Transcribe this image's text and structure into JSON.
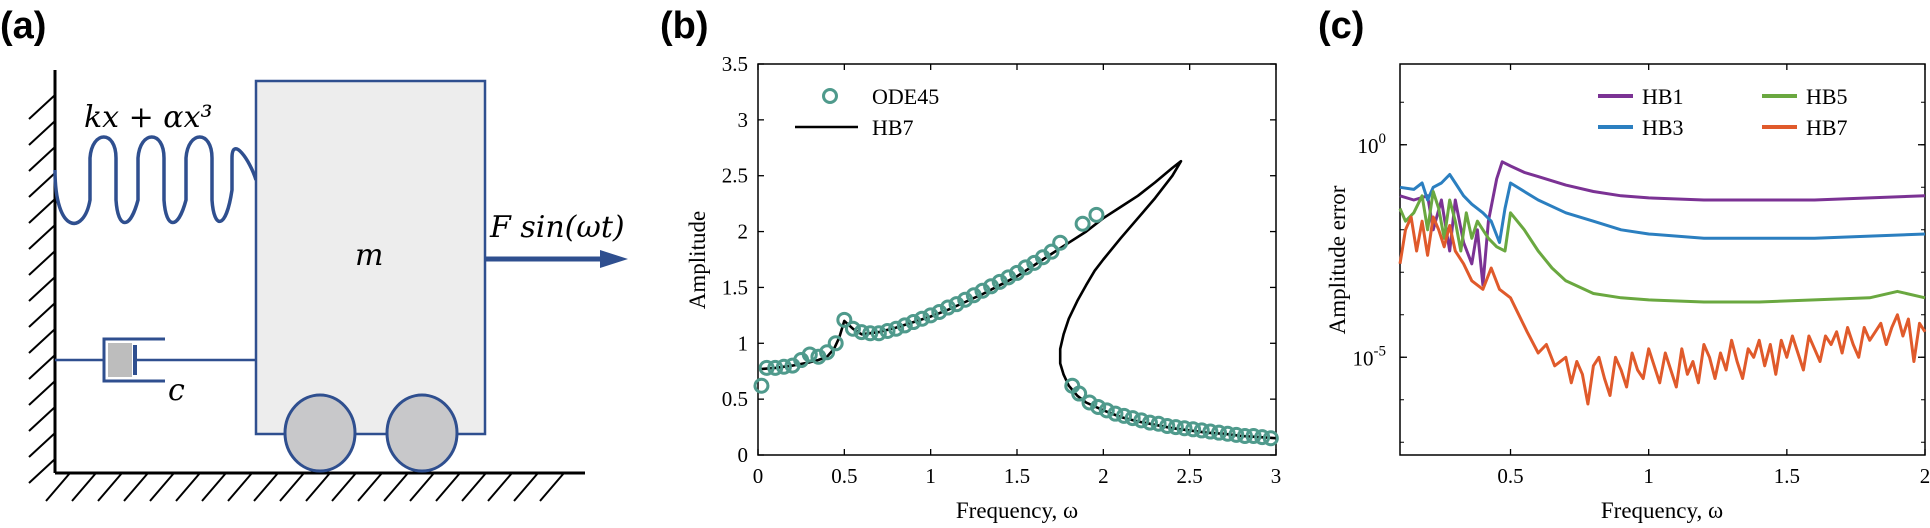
{
  "panels": {
    "a": {
      "label": "(a)",
      "spring_label": "kx + αx³",
      "mass_label": "m",
      "force_label": "F sin(ωt)",
      "damper_label": "c",
      "colors": {
        "line": "#2f4f8f",
        "mass_fill": "#ededed",
        "wheel_fill": "#c8c8ca"
      }
    },
    "b": {
      "label": "(b)"
    },
    "c": {
      "label": "(c)"
    }
  },
  "chart_data": [
    {
      "id": "b",
      "type": "line",
      "title": "",
      "xlabel": "Frequency, ω",
      "ylabel": "Amplitude",
      "xlim": [
        0,
        3
      ],
      "ylim": [
        0,
        3.5
      ],
      "xticks": [
        "0",
        "0.5",
        "1",
        "1.5",
        "2",
        "2.5",
        "3"
      ],
      "xtick_values": [
        0,
        0.5,
        1,
        1.5,
        2,
        2.5,
        3
      ],
      "yticks": [
        "0",
        "0.5",
        "1",
        "1.5",
        "2",
        "2.5",
        "3",
        "3.5"
      ],
      "ytick_values": [
        0,
        0.5,
        1,
        1.5,
        2,
        2.5,
        3,
        3.5
      ],
      "legend": {
        "position": "top-left",
        "entries": [
          "ODE45",
          "HB7"
        ]
      },
      "series": [
        {
          "name": "HB7",
          "kind": "line",
          "color": "#000000",
          "x": [
            0.02,
            0.1,
            0.2,
            0.3,
            0.35,
            0.4,
            0.44,
            0.47,
            0.5,
            0.55,
            0.6,
            0.7,
            0.8,
            0.9,
            1.0,
            1.1,
            1.2,
            1.3,
            1.4,
            1.5,
            1.6,
            1.7,
            1.8,
            1.9,
            2.0,
            2.1,
            2.2,
            2.3,
            2.4,
            2.45,
            2.4,
            2.3,
            2.2,
            2.1,
            2.0,
            1.95,
            1.9,
            1.85,
            1.8,
            1.77,
            1.75,
            1.75,
            1.77,
            1.8,
            1.85,
            1.9,
            2.0,
            2.1,
            2.2,
            2.3,
            2.4,
            2.5,
            2.6,
            2.7,
            2.8,
            2.9,
            3.0
          ],
          "y": [
            0.77,
            0.78,
            0.8,
            0.83,
            0.85,
            0.88,
            0.95,
            1.05,
            1.2,
            1.13,
            1.08,
            1.1,
            1.14,
            1.19,
            1.24,
            1.3,
            1.37,
            1.44,
            1.52,
            1.6,
            1.7,
            1.8,
            1.9,
            2.0,
            2.12,
            2.22,
            2.32,
            2.44,
            2.57,
            2.63,
            2.5,
            2.3,
            2.12,
            1.94,
            1.75,
            1.65,
            1.52,
            1.38,
            1.22,
            1.08,
            0.95,
            0.82,
            0.72,
            0.62,
            0.53,
            0.47,
            0.4,
            0.34,
            0.3,
            0.27,
            0.24,
            0.22,
            0.2,
            0.19,
            0.17,
            0.16,
            0.15
          ]
        },
        {
          "name": "ODE45",
          "kind": "markers",
          "color": "#4f9a8c",
          "x": [
            0.02,
            0.05,
            0.1,
            0.15,
            0.2,
            0.25,
            0.3,
            0.35,
            0.4,
            0.45,
            0.5,
            0.55,
            0.6,
            0.65,
            0.7,
            0.75,
            0.8,
            0.85,
            0.9,
            0.95,
            1.0,
            1.05,
            1.1,
            1.15,
            1.2,
            1.25,
            1.3,
            1.35,
            1.4,
            1.45,
            1.5,
            1.55,
            1.6,
            1.65,
            1.7,
            1.75,
            1.88,
            1.96,
            1.82,
            1.86,
            1.92,
            1.97,
            2.02,
            2.07,
            2.12,
            2.17,
            2.22,
            2.27,
            2.32,
            2.37,
            2.42,
            2.47,
            2.52,
            2.57,
            2.62,
            2.67,
            2.72,
            2.77,
            2.82,
            2.87,
            2.92,
            2.97
          ],
          "y": [
            0.62,
            0.78,
            0.78,
            0.79,
            0.8,
            0.85,
            0.9,
            0.88,
            0.92,
            1.0,
            1.21,
            1.13,
            1.1,
            1.09,
            1.09,
            1.11,
            1.13,
            1.16,
            1.19,
            1.22,
            1.25,
            1.28,
            1.32,
            1.35,
            1.39,
            1.43,
            1.47,
            1.51,
            1.55,
            1.59,
            1.63,
            1.68,
            1.72,
            1.77,
            1.82,
            1.9,
            2.07,
            2.15,
            0.62,
            0.55,
            0.47,
            0.43,
            0.4,
            0.37,
            0.35,
            0.33,
            0.31,
            0.29,
            0.28,
            0.26,
            0.25,
            0.24,
            0.23,
            0.22,
            0.21,
            0.2,
            0.19,
            0.18,
            0.17,
            0.17,
            0.16,
            0.15
          ]
        }
      ]
    },
    {
      "id": "c",
      "type": "line",
      "title": "",
      "xlabel": "Frequency, ω",
      "ylabel": "Amplitude error",
      "yscale": "log",
      "xlim": [
        0.1,
        2
      ],
      "ylim_log10": [
        -7.3,
        1.9
      ],
      "xticks": [
        "0.5",
        "1",
        "1.5",
        "2"
      ],
      "xtick_values": [
        0.5,
        1,
        1.5,
        2
      ],
      "yticks": [
        "10^0",
        "10^-5"
      ],
      "ytick_values": [
        0,
        -5
      ],
      "legend": {
        "position": "top-right",
        "entries": [
          "HB1",
          "HB5",
          "HB3",
          "HB7"
        ]
      },
      "series": [
        {
          "name": "HB1",
          "color": "#7b3294",
          "x": [
            0.1,
            0.15,
            0.2,
            0.22,
            0.25,
            0.28,
            0.3,
            0.33,
            0.36,
            0.38,
            0.4,
            0.42,
            0.45,
            0.47,
            0.5,
            0.55,
            0.6,
            0.7,
            0.8,
            0.9,
            1.0,
            1.2,
            1.4,
            1.6,
            1.8,
            2.0
          ],
          "y": [
            -1.2,
            -1.3,
            -1.2,
            -2.0,
            -1.3,
            -2.5,
            -1.3,
            -2.3,
            -2.8,
            -2.0,
            -3.3,
            -1.8,
            -0.8,
            -0.4,
            -0.5,
            -0.65,
            -0.75,
            -0.95,
            -1.1,
            -1.2,
            -1.25,
            -1.3,
            -1.3,
            -1.3,
            -1.25,
            -1.2
          ]
        },
        {
          "name": "HB3",
          "color": "#2b7fc0",
          "x": [
            0.1,
            0.15,
            0.18,
            0.2,
            0.22,
            0.25,
            0.28,
            0.3,
            0.33,
            0.36,
            0.4,
            0.43,
            0.46,
            0.48,
            0.5,
            0.55,
            0.6,
            0.7,
            0.8,
            0.9,
            1.0,
            1.2,
            1.4,
            1.6,
            1.8,
            2.0
          ],
          "y": [
            -1.0,
            -1.05,
            -0.9,
            -1.3,
            -1.0,
            -0.9,
            -0.7,
            -0.9,
            -1.2,
            -1.4,
            -1.6,
            -1.8,
            -2.3,
            -1.5,
            -0.9,
            -1.1,
            -1.3,
            -1.6,
            -1.8,
            -2.0,
            -2.1,
            -2.2,
            -2.2,
            -2.2,
            -2.15,
            -2.1
          ]
        },
        {
          "name": "HB5",
          "color": "#6aa840",
          "x": [
            0.1,
            0.12,
            0.15,
            0.18,
            0.2,
            0.22,
            0.24,
            0.26,
            0.28,
            0.3,
            0.32,
            0.34,
            0.36,
            0.38,
            0.4,
            0.42,
            0.45,
            0.48,
            0.5,
            0.55,
            0.6,
            0.65,
            0.7,
            0.8,
            0.9,
            1.0,
            1.2,
            1.4,
            1.6,
            1.8,
            1.9,
            2.0
          ],
          "y": [
            -1.5,
            -1.8,
            -1.6,
            -1.2,
            -2.0,
            -1.1,
            -1.5,
            -2.2,
            -1.3,
            -1.8,
            -2.5,
            -1.6,
            -2.2,
            -1.8,
            -2.0,
            -2.2,
            -2.4,
            -2.5,
            -1.6,
            -2.0,
            -2.5,
            -2.9,
            -3.2,
            -3.5,
            -3.6,
            -3.65,
            -3.7,
            -3.7,
            -3.65,
            -3.6,
            -3.45,
            -3.6
          ]
        },
        {
          "name": "HB7",
          "color": "#e05a2b",
          "x": [
            0.1,
            0.12,
            0.14,
            0.16,
            0.18,
            0.2,
            0.22,
            0.24,
            0.26,
            0.28,
            0.3,
            0.33,
            0.36,
            0.4,
            0.43,
            0.46,
            0.5,
            0.53,
            0.56,
            0.6,
            0.63,
            0.66,
            0.7,
            0.72,
            0.74,
            0.76,
            0.78,
            0.8,
            0.82,
            0.84,
            0.86,
            0.88,
            0.9,
            0.92,
            0.94,
            0.96,
            0.98,
            1.0,
            1.02,
            1.04,
            1.06,
            1.08,
            1.1,
            1.12,
            1.14,
            1.16,
            1.18,
            1.2,
            1.22,
            1.24,
            1.26,
            1.28,
            1.3,
            1.32,
            1.34,
            1.36,
            1.38,
            1.4,
            1.42,
            1.44,
            1.46,
            1.48,
            1.5,
            1.52,
            1.54,
            1.56,
            1.58,
            1.6,
            1.62,
            1.64,
            1.66,
            1.68,
            1.7,
            1.72,
            1.74,
            1.76,
            1.78,
            1.8,
            1.82,
            1.84,
            1.86,
            1.88,
            1.9,
            1.92,
            1.94,
            1.96,
            1.98,
            2.0
          ],
          "y": [
            -2.8,
            -2.0,
            -1.7,
            -2.5,
            -1.8,
            -2.6,
            -1.7,
            -2.0,
            -2.4,
            -1.9,
            -2.5,
            -2.8,
            -3.2,
            -3.4,
            -2.9,
            -3.4,
            -3.6,
            -4.0,
            -4.4,
            -4.9,
            -4.7,
            -5.2,
            -5.0,
            -5.6,
            -5.1,
            -5.4,
            -6.1,
            -5.2,
            -5.0,
            -5.5,
            -5.9,
            -5.0,
            -5.3,
            -5.7,
            -4.9,
            -5.3,
            -5.5,
            -4.8,
            -5.2,
            -5.6,
            -4.9,
            -5.3,
            -5.7,
            -4.8,
            -5.4,
            -5.1,
            -5.6,
            -4.7,
            -5.0,
            -5.5,
            -4.9,
            -5.3,
            -4.6,
            -5.1,
            -5.5,
            -4.8,
            -5.0,
            -4.6,
            -5.2,
            -4.7,
            -5.4,
            -4.6,
            -5.0,
            -4.5,
            -4.9,
            -5.3,
            -4.5,
            -4.8,
            -5.1,
            -4.5,
            -4.7,
            -4.4,
            -4.9,
            -4.3,
            -4.7,
            -5.0,
            -4.3,
            -4.6,
            -4.4,
            -4.2,
            -4.7,
            -4.3,
            -4.0,
            -4.5,
            -4.1,
            -5.1,
            -4.2,
            -4.4
          ]
        }
      ]
    }
  ]
}
